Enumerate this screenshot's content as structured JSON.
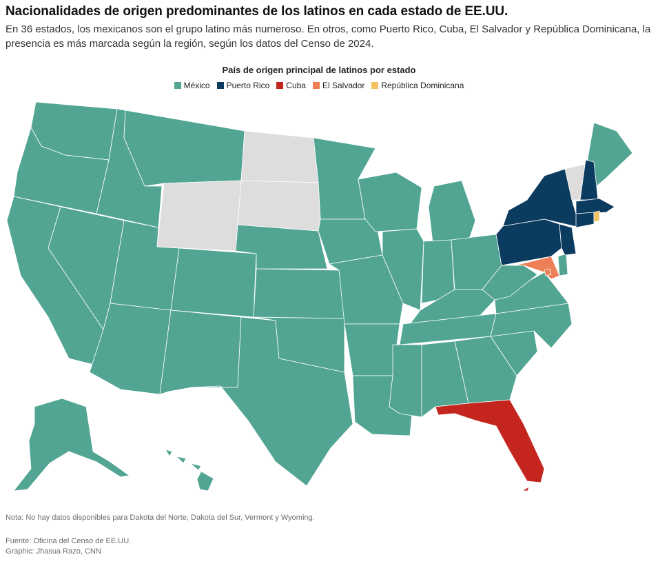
{
  "header": {
    "title": "Nacionalidades de origen predominantes de los latinos en cada estado de EE.UU.",
    "subtitle": "En 36 estados, los mexicanos son el grupo latino más numeroso. En otros, como Puerto Rico, Cuba, El Salvador y República Dominicana, la presencia es más marcada según la región, según los datos del Censo de 2024."
  },
  "legend": {
    "title": "País de origen principal de latinos por estado",
    "items": [
      {
        "label": "México",
        "color": "#52a593"
      },
      {
        "label": "Puerto Rico",
        "color": "#0c3b60"
      },
      {
        "label": "Cuba",
        "color": "#c4261f"
      },
      {
        "label": "El Salvador",
        "color": "#ec7f56"
      },
      {
        "label": "República Dominicana",
        "color": "#f1c25e"
      }
    ]
  },
  "colors": {
    "mexico": "#52a593",
    "puerto_rico": "#0c3b60",
    "cuba": "#c4261f",
    "el_salvador": "#ec7f56",
    "republica_dominicana": "#f1c25e",
    "no_data": "#dddddd"
  },
  "footer": {
    "note": "Nota: No hay datos disponibles para Dakota del Norte, Dakota del Sur, Vermont y Wyoming.",
    "source": "Fuente: Oficina del Censo de EE.UU.",
    "credit": "Graphic: Jhasua Razo, CNN"
  }
}
